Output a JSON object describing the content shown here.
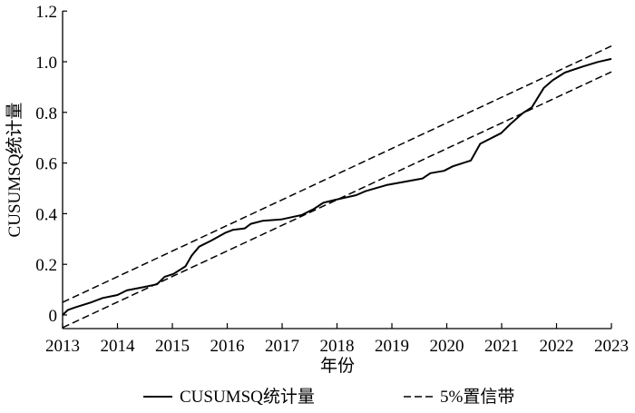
{
  "chart_data": {
    "type": "line",
    "title": "",
    "xlabel": "年份",
    "ylabel": "CUSUMSQ统计量",
    "xlim": [
      2013,
      2023
    ],
    "ylim": [
      -0.05,
      1.2
    ],
    "x_ticks": [
      "2013",
      "2014",
      "2015",
      "2016",
      "2017",
      "2018",
      "2019",
      "2020",
      "2021",
      "2022",
      "2023"
    ],
    "y_ticks": [
      "0",
      "0.2",
      "0.4",
      "0.6",
      "0.8",
      "1.0",
      "1.2"
    ],
    "grid": false,
    "legend_position": "bottom",
    "series": [
      {
        "name": "CUSUMSQ统计量",
        "style": "solid",
        "color": "#000000",
        "x": [
          2013,
          2013.1,
          2013.24,
          2013.51,
          2013.73,
          2014.0,
          2014.17,
          2014.45,
          2014.72,
          2014.86,
          2015.02,
          2015.24,
          2015.35,
          2015.49,
          2015.71,
          2015.96,
          2016.1,
          2016.32,
          2016.43,
          2016.65,
          2016.98,
          2017.36,
          2017.58,
          2017.75,
          2017.97,
          2018.35,
          2018.52,
          2018.9,
          2019.56,
          2019.7,
          2019.95,
          2020.11,
          2020.44,
          2020.61,
          2020.99,
          2021.16,
          2021.38,
          2021.55,
          2021.77,
          2021.93,
          2022.15,
          2022.48,
          2022.75,
          2023.0
        ],
        "y": [
          0,
          0.02,
          0.031,
          0.049,
          0.067,
          0.079,
          0.097,
          0.109,
          0.121,
          0.151,
          0.162,
          0.192,
          0.234,
          0.27,
          0.294,
          0.324,
          0.336,
          0.342,
          0.36,
          0.372,
          0.377,
          0.395,
          0.419,
          0.443,
          0.455,
          0.473,
          0.489,
          0.513,
          0.539,
          0.56,
          0.569,
          0.587,
          0.61,
          0.676,
          0.718,
          0.754,
          0.796,
          0.82,
          0.897,
          0.927,
          0.957,
          0.981,
          0.999,
          1.011
        ]
      },
      {
        "name": "5%置信带",
        "style": "dashed",
        "color": "#000000",
        "upper": {
          "x": [
            2013,
            2023
          ],
          "y": [
            0.05,
            1.062
          ]
        },
        "lower": {
          "x": [
            2013,
            2023
          ],
          "y": [
            -0.05,
            0.96
          ]
        }
      }
    ]
  }
}
